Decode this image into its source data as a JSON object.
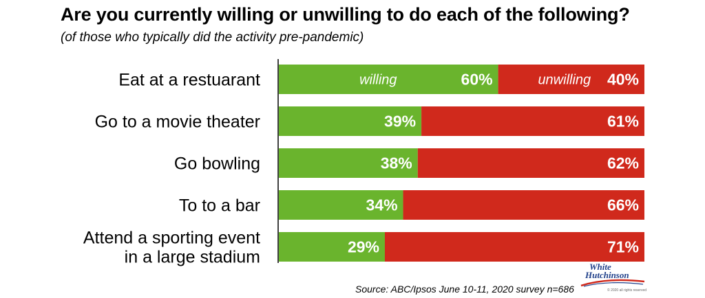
{
  "chart_data": {
    "type": "bar",
    "stacked": true,
    "orientation": "horizontal",
    "title": "Are you currently willing or unwilling to do each of the following?",
    "subtitle": "(of those who typically did the activity pre-pandemic)",
    "categories": [
      [
        "Eat at a restuarant"
      ],
      [
        "Go to a movie theater"
      ],
      [
        "Go bowling"
      ],
      [
        "To to a bar"
      ],
      [
        "Attend a sporting event",
        "in a large stadium"
      ]
    ],
    "series": [
      {
        "name": "willing",
        "color": "#6ab42d",
        "values": [
          60,
          39,
          38,
          34,
          29
        ]
      },
      {
        "name": "unwilling",
        "color": "#d0291c",
        "values": [
          40,
          61,
          62,
          66,
          71
        ]
      }
    ],
    "value_labels": {
      "willing": [
        "60%",
        "39%",
        "38%",
        "34%",
        "29%"
      ],
      "unwilling": [
        "40%",
        "61%",
        "62%",
        "66%",
        "71%"
      ]
    },
    "xlim": [
      0,
      100
    ],
    "grid": false,
    "legend": "inline in first bar"
  },
  "source": "Source: ABC/Ipsos June 10-11, 2020 survey n=686",
  "logo": {
    "line1": "White",
    "line2": "Hutchinson",
    "small_print": "© 2020 all rights reserved",
    "icon": "white-hutchinson-logo"
  }
}
